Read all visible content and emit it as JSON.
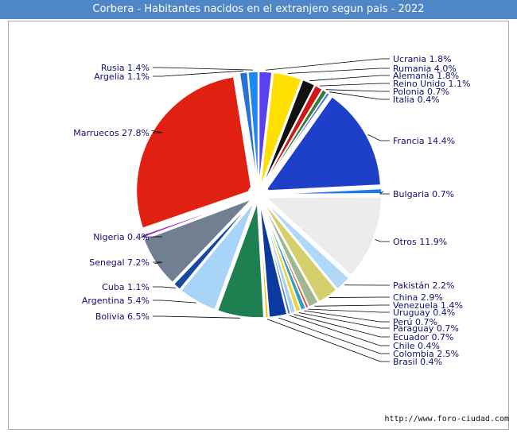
{
  "title": "Corbera - Habitantes nacidos en el extranjero segun pais - 2022",
  "footer": "http://www.foro-ciudad.com",
  "chart_data": {
    "type": "pie",
    "title": "Corbera - Habitantes nacidos en el extranjero segun pais - 2022",
    "unit": "%",
    "slices": [
      {
        "name": "Ucrania",
        "value": 1.8,
        "label": "Ucrania 1.8%",
        "color": "#5b3ff0"
      },
      {
        "name": "Rumania",
        "value": 4.0,
        "label": "Rumania 4.0%",
        "color": "#ffe000"
      },
      {
        "name": "Alemania",
        "value": 1.8,
        "label": "Alemania 1.8%",
        "color": "#111111"
      },
      {
        "name": "Reino Unido",
        "value": 1.1,
        "label": "Reino Unido 1.1%",
        "color": "#d01818"
      },
      {
        "name": "Polonia",
        "value": 0.7,
        "label": "Polonia 0.7%",
        "color": "#3a7a3a"
      },
      {
        "name": "Italia",
        "value": 0.4,
        "label": "Italia 0.4%",
        "color": "#3a70d8"
      },
      {
        "name": "Francia",
        "value": 14.4,
        "label": "Francia 14.4%",
        "color": "#1e40c8"
      },
      {
        "name": "Bulgaria",
        "value": 0.7,
        "label": "Bulgaria 0.7%",
        "color": "#1e78f0"
      },
      {
        "name": "Otros",
        "value": 11.9,
        "label": "Otros 11.9%",
        "color": "#ececec"
      },
      {
        "name": "Pakistán",
        "value": 2.2,
        "label": "Pakistán 2.2%",
        "color": "#b0d8f8"
      },
      {
        "name": "China",
        "value": 2.9,
        "label": "China 2.9%",
        "color": "#d4cf6a"
      },
      {
        "name": "Venezuela",
        "value": 1.4,
        "label": "Venezuela 1.4%",
        "color": "#a0b890"
      },
      {
        "name": "Uruguay",
        "value": 0.4,
        "label": "Uruguay 0.4%",
        "color": "#e04848"
      },
      {
        "name": "Perú",
        "value": 0.7,
        "label": "Perú 0.7%",
        "color": "#30a0c0"
      },
      {
        "name": "Paraguay",
        "value": 0.7,
        "label": "Paraguay 0.7%",
        "color": "#e8d840"
      },
      {
        "name": "Ecuador",
        "value": 0.7,
        "label": "Ecuador 0.7%",
        "color": "#a8d0f0"
      },
      {
        "name": "Chile",
        "value": 0.4,
        "label": "Chile 0.4%",
        "color": "#4878d0"
      },
      {
        "name": "Colombia",
        "value": 2.5,
        "label": "Colombia 2.5%",
        "color": "#0a3aa0"
      },
      {
        "name": "Brasil",
        "value": 0.4,
        "label": "Brasil 0.4%",
        "color": "#f0c000"
      },
      {
        "name": "Bolivia",
        "value": 6.5,
        "label": "Bolivia 6.5%",
        "color": "#1e8050"
      },
      {
        "name": "Argentina",
        "value": 5.4,
        "label": "Argentina 5.4%",
        "color": "#a8d4f8"
      },
      {
        "name": "Cuba",
        "value": 1.1,
        "label": "Cuba 1.1%",
        "color": "#1848a0"
      },
      {
        "name": "Senegal",
        "value": 7.2,
        "label": "Senegal 7.2%",
        "color": "#708090"
      },
      {
        "name": "Nigeria",
        "value": 0.4,
        "label": "Nigeria 0.4%",
        "color": "#a020e0"
      },
      {
        "name": "Marruecos",
        "value": 27.8,
        "label": "Marruecos 27.8%",
        "color": "#e02010"
      },
      {
        "name": "Argelia",
        "value": 1.1,
        "label": "Argelia 1.1%",
        "color": "#2a70d8"
      },
      {
        "name": "Rusia",
        "value": 1.4,
        "label": "Rusia 1.4%",
        "color": "#1e88f0"
      }
    ]
  }
}
